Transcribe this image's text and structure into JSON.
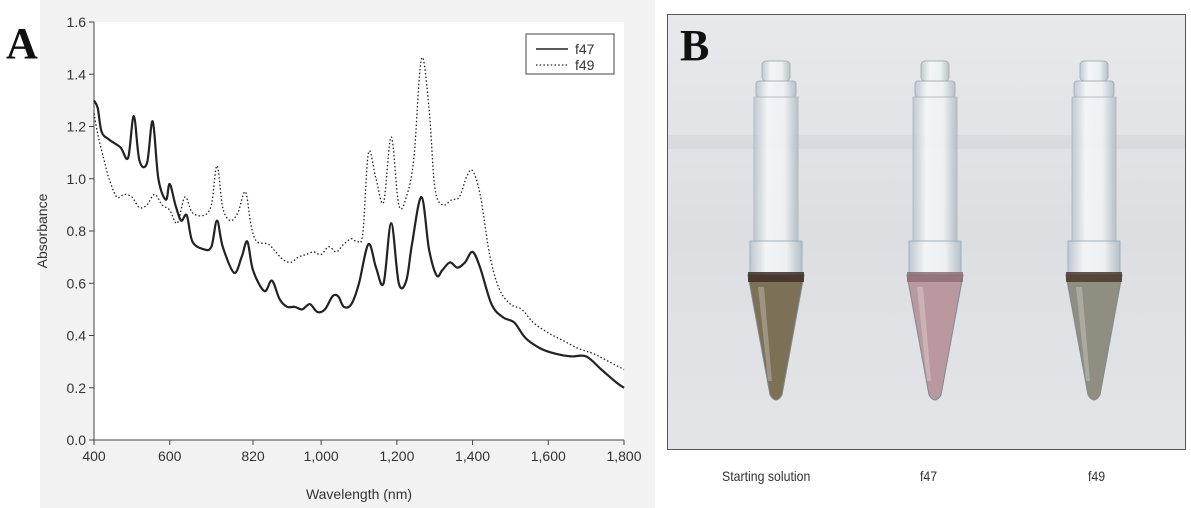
{
  "panel_labels": {
    "a": "A",
    "b": "B"
  },
  "chart_data": {
    "type": "line",
    "title": "",
    "xlabel": "Wavelength (nm)",
    "ylabel": "Absorbance",
    "xlim": [
      400,
      1800
    ],
    "ylim": [
      0.0,
      1.6
    ],
    "x_ticks": [
      400,
      600,
      820,
      1000,
      1200,
      1400,
      1600,
      1800
    ],
    "x_tick_labels": [
      "400",
      "600",
      "820",
      "1,000",
      "1,200",
      "1,400",
      "1,600",
      "1,800"
    ],
    "y_ticks": [
      0.0,
      0.2,
      0.4,
      0.6,
      0.8,
      1.0,
      1.2,
      1.4,
      1.6
    ],
    "y_tick_labels": [
      "0.0",
      "0.2",
      "0.4",
      "0.6",
      "0.8",
      "1.0",
      "1.2",
      "1.4",
      "1.6"
    ],
    "grid": false,
    "legend_position": "top-right",
    "series": [
      {
        "name": "f47",
        "style": "solid",
        "x": [
          400,
          410,
          420,
          440,
          470,
          490,
          505,
          520,
          540,
          555,
          570,
          590,
          600,
          615,
          630,
          645,
          660,
          690,
          710,
          725,
          740,
          770,
          790,
          805,
          820,
          850,
          870,
          890,
          910,
          930,
          950,
          970,
          990,
          1010,
          1030,
          1045,
          1060,
          1080,
          1100,
          1125,
          1145,
          1165,
          1185,
          1205,
          1225,
          1240,
          1265,
          1285,
          1305,
          1320,
          1340,
          1360,
          1380,
          1400,
          1420,
          1450,
          1480,
          1510,
          1540,
          1580,
          1620,
          1660,
          1700,
          1740,
          1780,
          1800
        ],
        "y": [
          1.3,
          1.27,
          1.18,
          1.15,
          1.12,
          1.08,
          1.24,
          1.07,
          1.06,
          1.22,
          1.0,
          0.92,
          0.98,
          0.9,
          0.84,
          0.86,
          0.76,
          0.73,
          0.74,
          0.84,
          0.74,
          0.64,
          0.7,
          0.76,
          0.65,
          0.57,
          0.61,
          0.54,
          0.51,
          0.51,
          0.5,
          0.52,
          0.49,
          0.5,
          0.55,
          0.55,
          0.51,
          0.52,
          0.6,
          0.75,
          0.66,
          0.6,
          0.83,
          0.6,
          0.61,
          0.75,
          0.93,
          0.73,
          0.63,
          0.65,
          0.68,
          0.66,
          0.68,
          0.72,
          0.66,
          0.52,
          0.47,
          0.45,
          0.39,
          0.35,
          0.33,
          0.32,
          0.32,
          0.27,
          0.22,
          0.2
        ]
      },
      {
        "name": "f49",
        "style": "dotted",
        "x": [
          400,
          410,
          425,
          440,
          460,
          480,
          500,
          520,
          540,
          560,
          580,
          600,
          620,
          640,
          660,
          690,
          710,
          725,
          740,
          760,
          780,
          800,
          815,
          830,
          860,
          880,
          900,
          920,
          940,
          960,
          980,
          1000,
          1020,
          1040,
          1060,
          1080,
          1095,
          1110,
          1125,
          1145,
          1165,
          1185,
          1205,
          1225,
          1245,
          1265,
          1285,
          1300,
          1320,
          1345,
          1365,
          1385,
          1400,
          1420,
          1445,
          1470,
          1500,
          1530,
          1560,
          1600,
          1640,
          1680,
          1720,
          1760,
          1800
        ],
        "y": [
          1.25,
          1.17,
          1.08,
          1.0,
          0.93,
          0.94,
          0.93,
          0.89,
          0.9,
          0.94,
          0.9,
          0.88,
          0.83,
          0.93,
          0.87,
          0.86,
          0.9,
          1.05,
          0.89,
          0.84,
          0.87,
          0.95,
          0.82,
          0.76,
          0.75,
          0.72,
          0.69,
          0.68,
          0.7,
          0.71,
          0.72,
          0.71,
          0.74,
          0.72,
          0.75,
          0.77,
          0.76,
          0.79,
          1.1,
          1.0,
          0.91,
          1.16,
          0.9,
          0.93,
          1.08,
          1.46,
          1.27,
          0.97,
          0.9,
          0.92,
          0.93,
          1.01,
          1.03,
          0.94,
          0.71,
          0.58,
          0.52,
          0.5,
          0.45,
          0.41,
          0.38,
          0.35,
          0.33,
          0.3,
          0.27
        ]
      }
    ]
  },
  "photo": {
    "tube_captions": [
      "Starting solution",
      "f47",
      "f49"
    ],
    "tube_colors": [
      "#7c7157",
      "#b9999f",
      "#8f8e80"
    ],
    "tube_rim_colors": [
      "#3f2e26",
      "#8d6e72",
      "#4a3a2c"
    ],
    "background_color": "#e1e3e6"
  }
}
